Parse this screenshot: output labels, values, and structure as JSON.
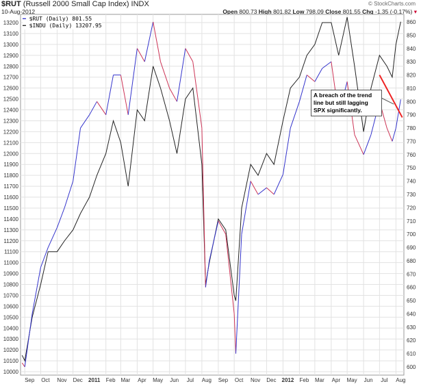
{
  "header": {
    "symbol": "$RUT",
    "name": "(Russell 2000 Small Cap Index)",
    "exchange": "INDX",
    "date": "10-Aug-2012",
    "watermark": "© StockCharts.com",
    "open_label": "Open",
    "open": "800.73",
    "high_label": "High",
    "high": "801.82",
    "low_label": "Low",
    "low": "798.09",
    "close_label": "Close",
    "close": "801.55",
    "chg_label": "Chg",
    "chg": "-1.35 (-0.17%)",
    "chg_icon": "down-triangle-icon",
    "chg_color": "#cc0033"
  },
  "chart_data": {
    "type": "line",
    "title": "$RUT (Russell 2000 Small Cap Index) INDX",
    "x_ticks": [
      [
        "2010-09-01",
        "Sep"
      ],
      [
        "2010-10-01",
        "Oct"
      ],
      [
        "2010-11-01",
        "Nov"
      ],
      [
        "2010-12-01",
        "Dec"
      ],
      [
        "2011-01-01",
        "2011"
      ],
      [
        "2011-02-01",
        "Feb"
      ],
      [
        "2011-03-01",
        "Mar"
      ],
      [
        "2011-04-01",
        "Apr"
      ],
      [
        "2011-05-01",
        "May"
      ],
      [
        "2011-06-01",
        "Jun"
      ],
      [
        "2011-07-01",
        "Jul"
      ],
      [
        "2011-08-01",
        "Aug"
      ],
      [
        "2011-09-01",
        "Sep"
      ],
      [
        "2011-10-01",
        "Oct"
      ],
      [
        "2011-11-01",
        "Nov"
      ],
      [
        "2011-12-01",
        "Dec"
      ],
      [
        "2012-01-01",
        "2012"
      ],
      [
        "2012-02-01",
        "Feb"
      ],
      [
        "2012-03-01",
        "Mar"
      ],
      [
        "2012-04-01",
        "Apr"
      ],
      [
        "2012-05-01",
        "May"
      ],
      [
        "2012-06-01",
        "Jun"
      ],
      [
        "2012-07-01",
        "Jul"
      ],
      [
        "2012-08-01",
        "Aug"
      ]
    ],
    "x_range": [
      "2010-08-24",
      "2012-08-16"
    ],
    "left_axis": {
      "range": [
        10000,
        13200
      ],
      "step": 100
    },
    "right_axis": {
      "range": [
        600,
        860
      ],
      "step": 10
    },
    "grid": true,
    "legend_position": "top-left",
    "series": [
      {
        "name": "$RUT (Daily) 801.55",
        "axis": "right",
        "color_up": "#3333cc",
        "color_down": "#cc3355",
        "x": [
          "2010-08-27",
          "2010-09-01",
          "2010-09-15",
          "2010-10-01",
          "2010-10-15",
          "2010-11-01",
          "2010-11-15",
          "2010-12-01",
          "2010-12-15",
          "2011-01-01",
          "2011-01-15",
          "2011-02-01",
          "2011-02-15",
          "2011-03-01",
          "2011-03-15",
          "2011-04-01",
          "2011-04-15",
          "2011-05-01",
          "2011-05-15",
          "2011-06-01",
          "2011-06-15",
          "2011-07-01",
          "2011-07-15",
          "2011-08-01",
          "2011-08-08",
          "2011-08-15",
          "2011-09-01",
          "2011-09-15",
          "2011-10-01",
          "2011-10-04",
          "2011-10-15",
          "2011-11-01",
          "2011-11-15",
          "2011-12-01",
          "2011-12-15",
          "2012-01-01",
          "2012-01-15",
          "2012-02-01",
          "2012-02-15",
          "2012-03-01",
          "2012-03-15",
          "2012-04-01",
          "2012-04-15",
          "2012-05-01",
          "2012-05-15",
          "2012-06-01",
          "2012-06-15",
          "2012-07-01",
          "2012-07-15",
          "2012-07-25",
          "2012-08-01",
          "2012-08-10"
        ],
        "values": [
          603,
          600,
          640,
          675,
          690,
          705,
          720,
          740,
          780,
          790,
          800,
          790,
          820,
          820,
          790,
          840,
          830,
          860,
          830,
          810,
          800,
          840,
          830,
          780,
          660,
          680,
          710,
          700,
          640,
          610,
          700,
          740,
          730,
          735,
          730,
          745,
          780,
          800,
          820,
          815,
          825,
          830,
          790,
          815,
          775,
          760,
          775,
          800,
          780,
          770,
          780,
          801.55
        ]
      },
      {
        "name": "$INDU (Daily) 13207.95",
        "axis": "left",
        "color": "#222222",
        "x": [
          "2010-08-27",
          "2010-09-01",
          "2010-09-15",
          "2010-10-01",
          "2010-10-15",
          "2010-11-01",
          "2010-11-15",
          "2010-12-01",
          "2010-12-15",
          "2011-01-01",
          "2011-01-15",
          "2011-02-01",
          "2011-02-15",
          "2011-03-01",
          "2011-03-15",
          "2011-04-01",
          "2011-04-15",
          "2011-05-01",
          "2011-05-15",
          "2011-06-01",
          "2011-06-15",
          "2011-07-01",
          "2011-07-15",
          "2011-08-01",
          "2011-08-08",
          "2011-08-15",
          "2011-09-01",
          "2011-09-15",
          "2011-10-01",
          "2011-10-04",
          "2011-10-15",
          "2011-11-01",
          "2011-11-15",
          "2011-12-01",
          "2011-12-15",
          "2012-01-01",
          "2012-01-15",
          "2012-02-01",
          "2012-02-15",
          "2012-03-01",
          "2012-03-15",
          "2012-04-01",
          "2012-04-15",
          "2012-05-01",
          "2012-05-15",
          "2012-06-01",
          "2012-06-15",
          "2012-07-01",
          "2012-07-15",
          "2012-07-25",
          "2012-08-01",
          "2012-08-10"
        ],
        "values": [
          10150,
          10100,
          10500,
          10800,
          11100,
          11100,
          11200,
          11300,
          11450,
          11600,
          11800,
          12000,
          12300,
          12100,
          11700,
          12400,
          12300,
          12800,
          12600,
          12300,
          12000,
          12500,
          12600,
          11900,
          10800,
          11000,
          11400,
          11300,
          10700,
          10650,
          11500,
          11900,
          11800,
          12000,
          11900,
          12300,
          12600,
          12700,
          12900,
          13000,
          13200,
          13200,
          12900,
          13250,
          12800,
          12200,
          12600,
          12900,
          12800,
          12700,
          13000,
          13207.95
        ]
      }
    ],
    "trendline": {
      "color": "#ee2222",
      "from": [
        "2012-07-01",
        820
      ],
      "to": [
        "2012-08-13",
        788
      ]
    },
    "annotation": "A breach of the trend line but still lagging SPX significantly."
  }
}
